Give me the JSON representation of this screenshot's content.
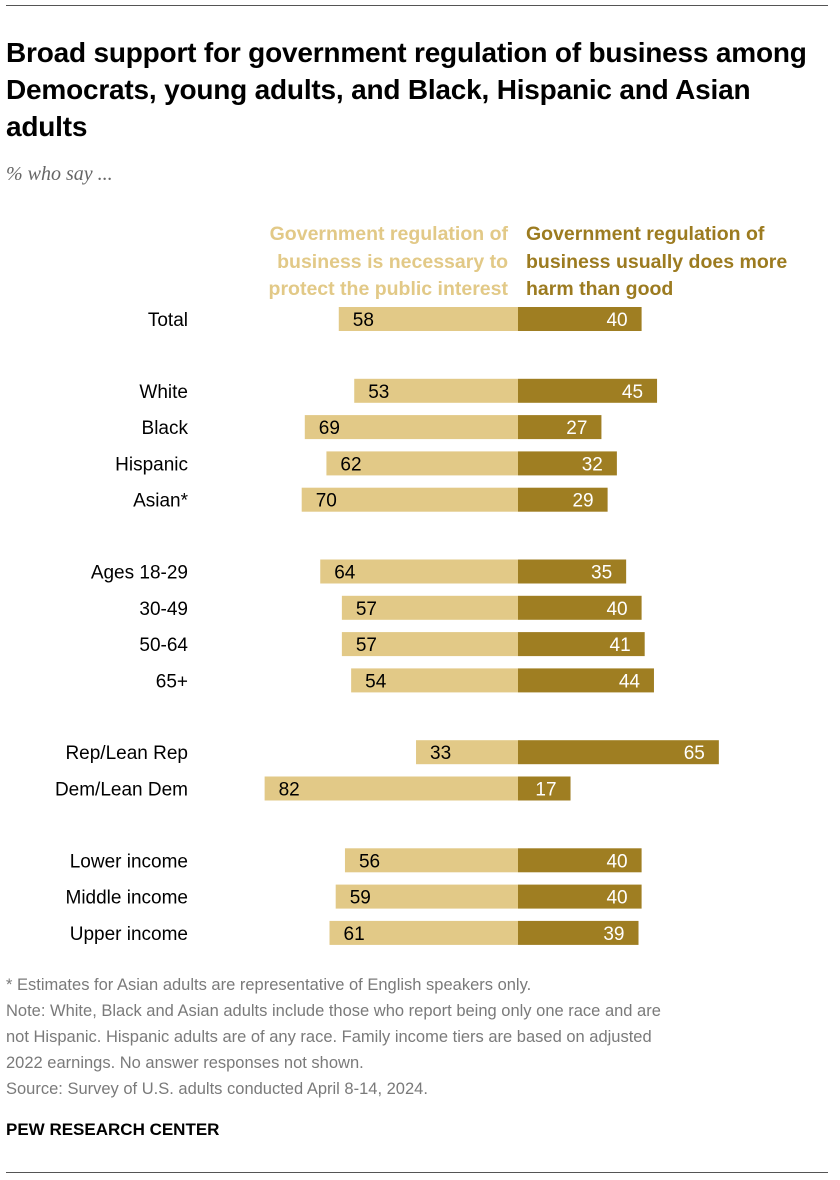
{
  "title": "Broad support for government regulation of business among Democrats, young adults, and Black, Hispanic and Asian adults",
  "subtitle": "% who say ...",
  "colors": {
    "necessary": "#E2C987",
    "harm": "#9F7E22"
  },
  "chart_data": {
    "type": "bar",
    "orientation": "horizontal-diverging",
    "categories": [
      "Total",
      "White",
      "Black",
      "Hispanic",
      "Asian*",
      "Ages 18-29",
      "30-49",
      "50-64",
      "65+",
      "Rep/Lean Rep",
      "Dem/Lean Dem",
      "Lower income",
      "Middle income",
      "Upper income"
    ],
    "groups": [
      [
        0
      ],
      [
        1,
        2,
        3,
        4
      ],
      [
        5,
        6,
        7,
        8
      ],
      [
        9,
        10
      ],
      [
        11,
        12,
        13
      ]
    ],
    "series": [
      {
        "name": "Government regulation of business is necessary to protect the public interest",
        "side": "left",
        "values": [
          58,
          53,
          69,
          62,
          70,
          64,
          57,
          57,
          54,
          33,
          82,
          56,
          59,
          61
        ]
      },
      {
        "name": "Government regulation of business usually does more harm than good",
        "side": "right",
        "values": [
          40,
          45,
          27,
          32,
          29,
          35,
          40,
          41,
          44,
          65,
          17,
          40,
          40,
          39
        ]
      }
    ],
    "xlim": [
      0,
      100
    ]
  },
  "legend": {
    "left_lines": [
      "Government regulation of",
      "business is necessary to",
      "protect the public interest"
    ],
    "right_lines": [
      "Government regulation of",
      "business usually does more",
      "harm than good"
    ]
  },
  "notes": {
    "asterisk": "* Estimates for Asian adults are representative of English speakers only.",
    "note_lines": [
      "Note: White, Black and Asian adults include those who report being only one race and are",
      "not Hispanic. Hispanic adults are of any race. Family income tiers are based on adjusted",
      "2022 earnings. No answer responses not shown."
    ],
    "source": "Source: Survey of U.S. adults conducted April 8-14, 2024."
  },
  "brand": "PEW RESEARCH CENTER"
}
